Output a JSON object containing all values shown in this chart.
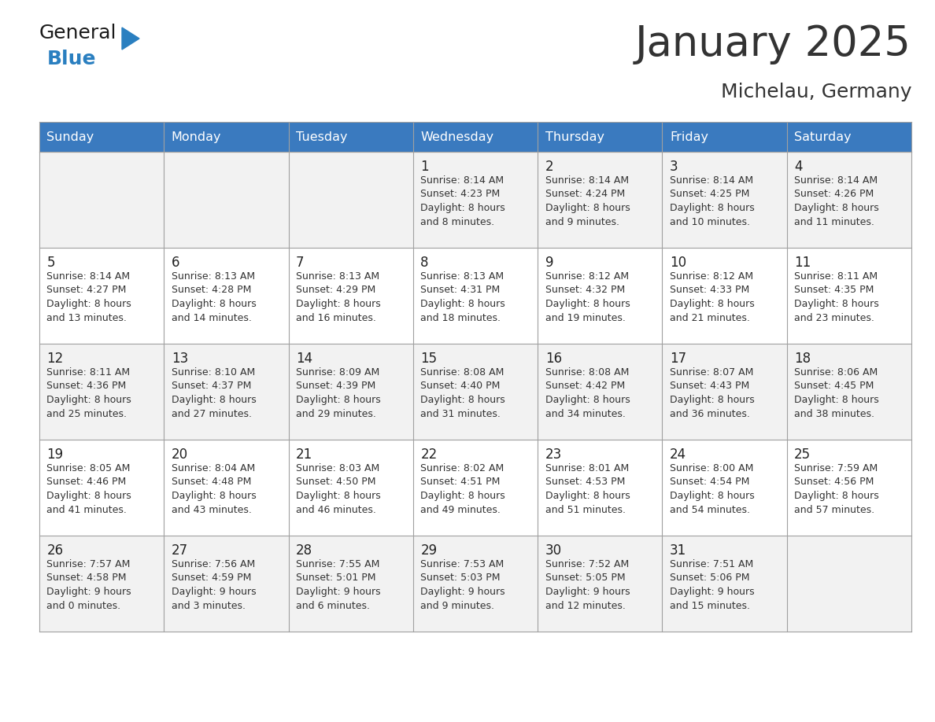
{
  "title": "January 2025",
  "subtitle": "Michelau, Germany",
  "header_color": "#3a7abf",
  "header_text_color": "#ffffff",
  "cell_bg_even": "#f2f2f2",
  "cell_bg_odd": "#ffffff",
  "border_color": "#a0a0a0",
  "text_color": "#333333",
  "day_num_color": "#222222",
  "days_of_week": [
    "Sunday",
    "Monday",
    "Tuesday",
    "Wednesday",
    "Thursday",
    "Friday",
    "Saturday"
  ],
  "calendar_data": [
    [
      "",
      "",
      "",
      "1\nSunrise: 8:14 AM\nSunset: 4:23 PM\nDaylight: 8 hours\nand 8 minutes.",
      "2\nSunrise: 8:14 AM\nSunset: 4:24 PM\nDaylight: 8 hours\nand 9 minutes.",
      "3\nSunrise: 8:14 AM\nSunset: 4:25 PM\nDaylight: 8 hours\nand 10 minutes.",
      "4\nSunrise: 8:14 AM\nSunset: 4:26 PM\nDaylight: 8 hours\nand 11 minutes."
    ],
    [
      "5\nSunrise: 8:14 AM\nSunset: 4:27 PM\nDaylight: 8 hours\nand 13 minutes.",
      "6\nSunrise: 8:13 AM\nSunset: 4:28 PM\nDaylight: 8 hours\nand 14 minutes.",
      "7\nSunrise: 8:13 AM\nSunset: 4:29 PM\nDaylight: 8 hours\nand 16 minutes.",
      "8\nSunrise: 8:13 AM\nSunset: 4:31 PM\nDaylight: 8 hours\nand 18 minutes.",
      "9\nSunrise: 8:12 AM\nSunset: 4:32 PM\nDaylight: 8 hours\nand 19 minutes.",
      "10\nSunrise: 8:12 AM\nSunset: 4:33 PM\nDaylight: 8 hours\nand 21 minutes.",
      "11\nSunrise: 8:11 AM\nSunset: 4:35 PM\nDaylight: 8 hours\nand 23 minutes."
    ],
    [
      "12\nSunrise: 8:11 AM\nSunset: 4:36 PM\nDaylight: 8 hours\nand 25 minutes.",
      "13\nSunrise: 8:10 AM\nSunset: 4:37 PM\nDaylight: 8 hours\nand 27 minutes.",
      "14\nSunrise: 8:09 AM\nSunset: 4:39 PM\nDaylight: 8 hours\nand 29 minutes.",
      "15\nSunrise: 8:08 AM\nSunset: 4:40 PM\nDaylight: 8 hours\nand 31 minutes.",
      "16\nSunrise: 8:08 AM\nSunset: 4:42 PM\nDaylight: 8 hours\nand 34 minutes.",
      "17\nSunrise: 8:07 AM\nSunset: 4:43 PM\nDaylight: 8 hours\nand 36 minutes.",
      "18\nSunrise: 8:06 AM\nSunset: 4:45 PM\nDaylight: 8 hours\nand 38 minutes."
    ],
    [
      "19\nSunrise: 8:05 AM\nSunset: 4:46 PM\nDaylight: 8 hours\nand 41 minutes.",
      "20\nSunrise: 8:04 AM\nSunset: 4:48 PM\nDaylight: 8 hours\nand 43 minutes.",
      "21\nSunrise: 8:03 AM\nSunset: 4:50 PM\nDaylight: 8 hours\nand 46 minutes.",
      "22\nSunrise: 8:02 AM\nSunset: 4:51 PM\nDaylight: 8 hours\nand 49 minutes.",
      "23\nSunrise: 8:01 AM\nSunset: 4:53 PM\nDaylight: 8 hours\nand 51 minutes.",
      "24\nSunrise: 8:00 AM\nSunset: 4:54 PM\nDaylight: 8 hours\nand 54 minutes.",
      "25\nSunrise: 7:59 AM\nSunset: 4:56 PM\nDaylight: 8 hours\nand 57 minutes."
    ],
    [
      "26\nSunrise: 7:57 AM\nSunset: 4:58 PM\nDaylight: 9 hours\nand 0 minutes.",
      "27\nSunrise: 7:56 AM\nSunset: 4:59 PM\nDaylight: 9 hours\nand 3 minutes.",
      "28\nSunrise: 7:55 AM\nSunset: 5:01 PM\nDaylight: 9 hours\nand 6 minutes.",
      "29\nSunrise: 7:53 AM\nSunset: 5:03 PM\nDaylight: 9 hours\nand 9 minutes.",
      "30\nSunrise: 7:52 AM\nSunset: 5:05 PM\nDaylight: 9 hours\nand 12 minutes.",
      "31\nSunrise: 7:51 AM\nSunset: 5:06 PM\nDaylight: 9 hours\nand 15 minutes.",
      ""
    ]
  ],
  "logo_color_general": "#1a1a1a",
  "logo_color_blue": "#2a7fc0",
  "logo_triangle_color": "#2a7fc0",
  "fig_width": 11.88,
  "fig_height": 9.18,
  "dpi": 100
}
